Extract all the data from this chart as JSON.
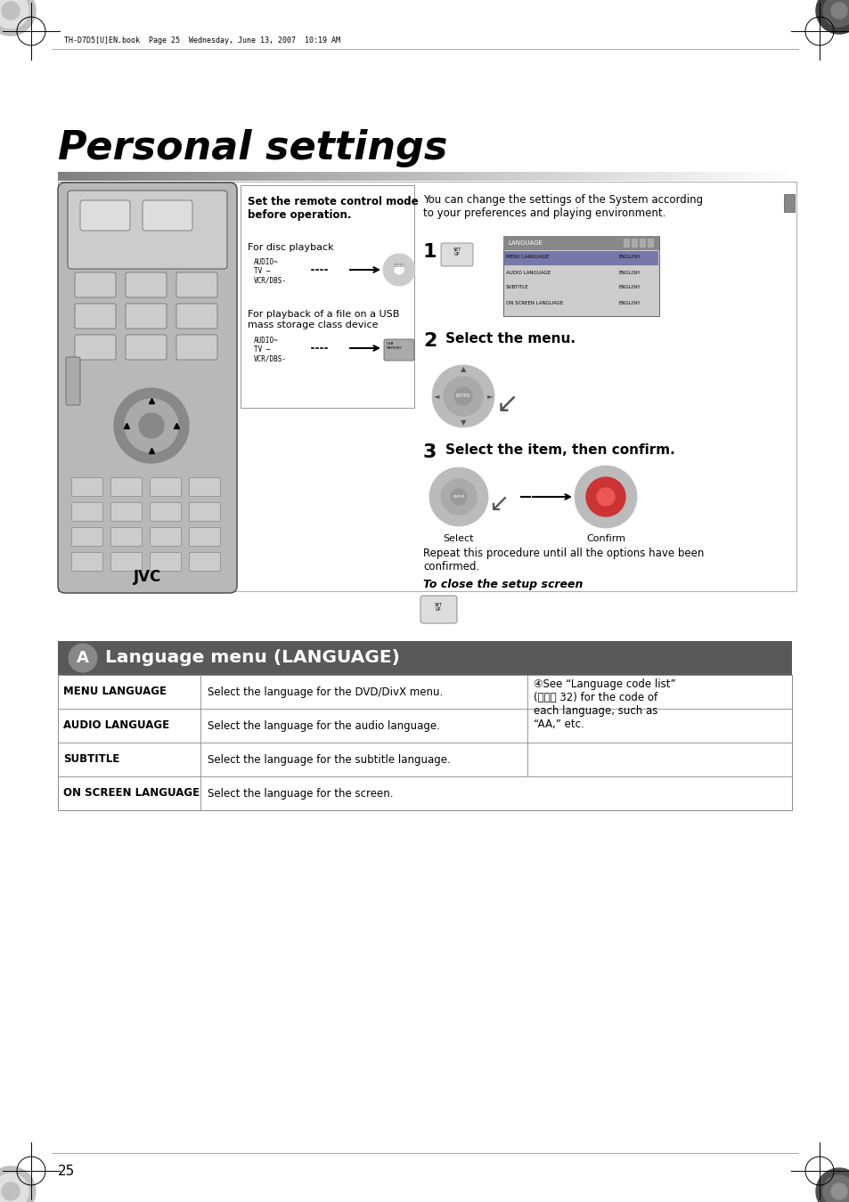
{
  "page_bg": "#ffffff",
  "title": "Personal settings",
  "header_text": "TH-D7D5[U]EN.book  Page 25  Wednesday, June 13, 2007  10:19 AM",
  "page_number": "25",
  "section_header": "Language menu (LANGUAGE)",
  "section_header_bg": "#595959",
  "section_header_fg": "#ffffff",
  "table_rows": [
    {
      "col1": "MENU LANGUAGE",
      "col2": "Select the language for the DVD/DivX menu."
    },
    {
      "col1": "AUDIO LANGUAGE",
      "col2": "Select the language for the audio language."
    },
    {
      "col1": "SUBTITLE",
      "col2": "Select the language for the subtitle language."
    },
    {
      "col1": "ON SCREEN LANGUAGE",
      "col2": "Select the language for the screen."
    }
  ],
  "table_note": "④See “Language code list”\n(ᏣᎢᎣ 32) for the code of\neach language, such as\n“AA,” etc.",
  "remote_text_disc": "For disc playback",
  "remote_text_usb": "For playback of a file on a USB\nmass storage class device",
  "remote_bold": "Set the remote control mode\nbefore operation.",
  "step1_text": "You can change the settings of the System according\nto your preferences and playing environment.",
  "step2_text": "Select the menu.",
  "step3_text": "Select the item, then confirm.",
  "repeat_text": "Repeat this procedure until all the options have been\nconfirmed.",
  "close_text": "To close the setup screen"
}
